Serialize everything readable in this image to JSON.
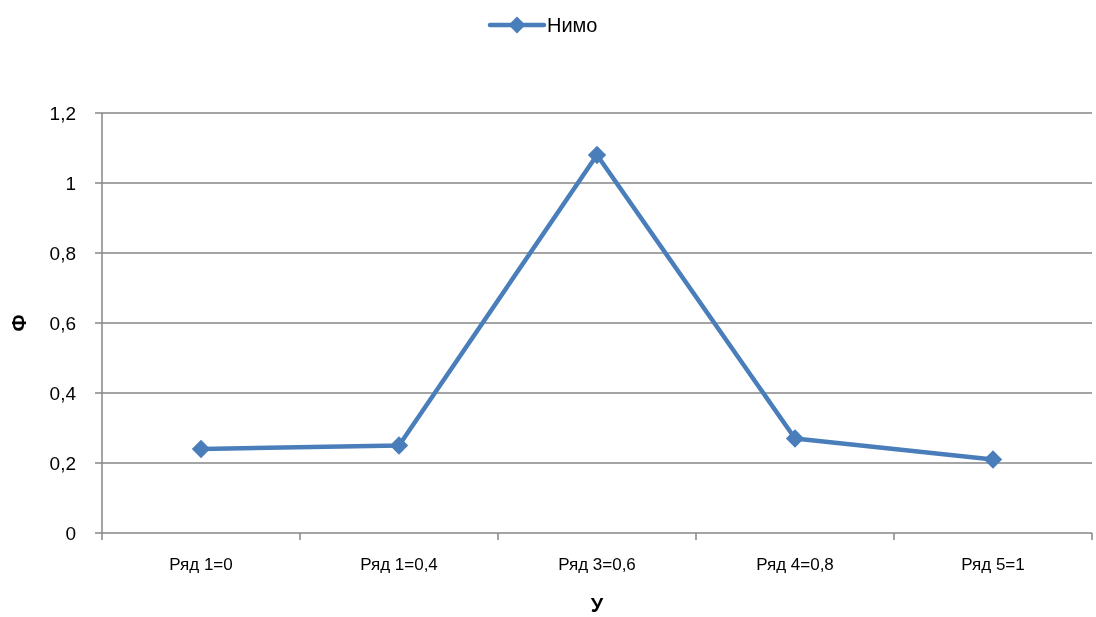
{
  "chart_data": {
    "type": "line",
    "xlabel": "У",
    "ylabel": "Ф",
    "categories": [
      "Ряд 1=0",
      "Ряд 1=0,4",
      "Ряд 3=0,6",
      "Ряд 4=0,8",
      "Ряд 5=1"
    ],
    "series": [
      {
        "name": "Нимо",
        "color": "#4a7ebb",
        "values": [
          0.24,
          0.25,
          1.08,
          0.27,
          0.21
        ]
      }
    ],
    "ylim": [
      0,
      1.2
    ],
    "yticks": [
      {
        "value": 0,
        "label": "0"
      },
      {
        "value": 0.2,
        "label": "0,2"
      },
      {
        "value": 0.4,
        "label": "0,4"
      },
      {
        "value": 0.6,
        "label": "0,6"
      },
      {
        "value": 0.8,
        "label": "0,8"
      },
      {
        "value": 1,
        "label": "1"
      },
      {
        "value": 1.2,
        "label": "1,2"
      }
    ],
    "grid": "y",
    "legend": "top",
    "marker": "diamond",
    "line_style": "solid"
  }
}
